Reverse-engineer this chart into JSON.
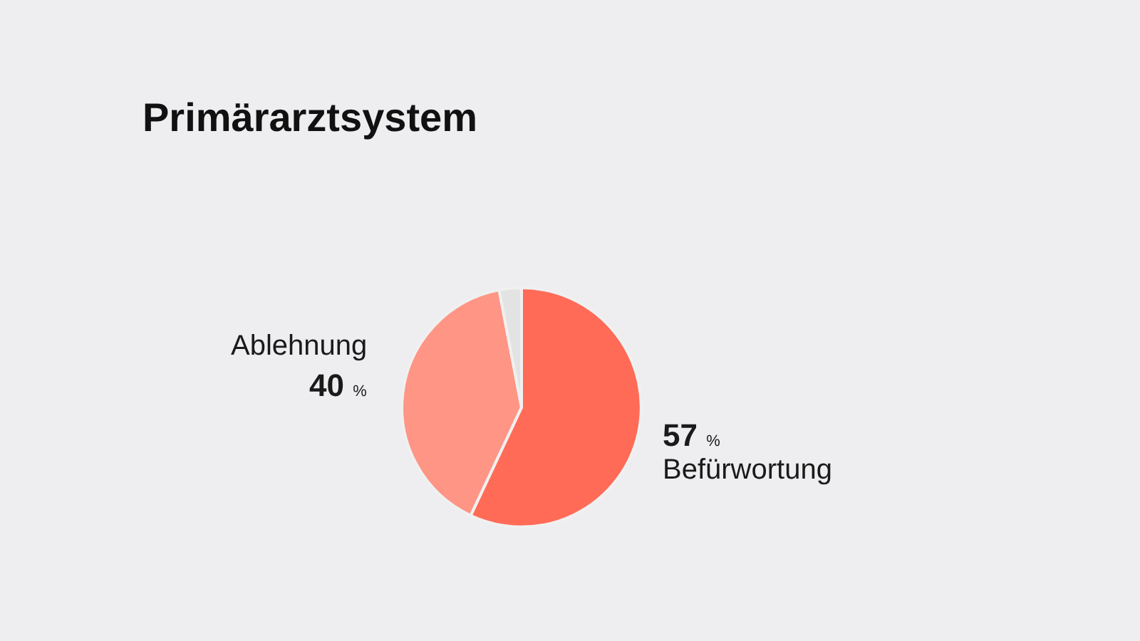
{
  "chart_data": {
    "type": "pie",
    "title": "Primärarztsystem",
    "categories": [
      "Befürwortung",
      "Ablehnung",
      null
    ],
    "values": [
      57,
      40,
      3
    ],
    "colors": [
      "#ff6b57",
      "#ff9585",
      "#e3e3e3"
    ],
    "value_labels": [
      "57 %",
      "40 %",
      null
    ],
    "legend": false
  }
}
